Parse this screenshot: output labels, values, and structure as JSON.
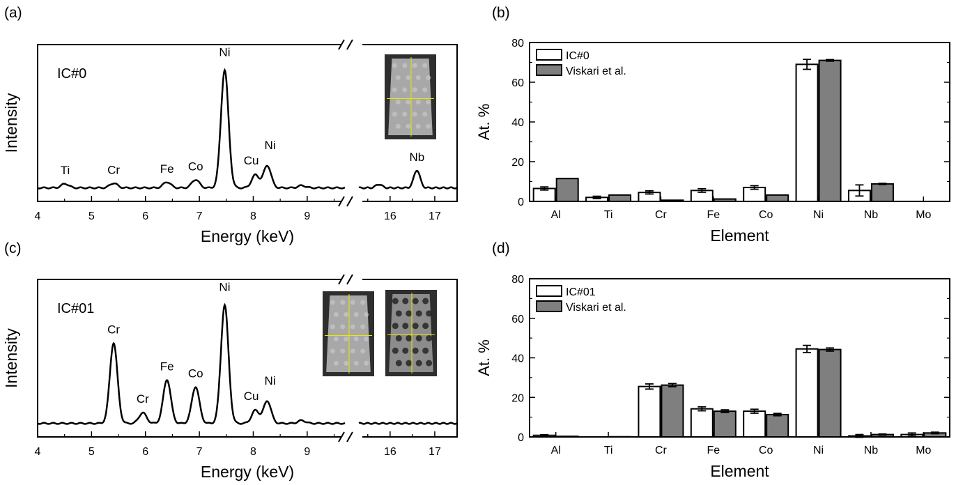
{
  "chart_data": [
    {
      "panel": "(a)",
      "type": "line",
      "label": "IC#0",
      "xlabel": "Energy (keV)",
      "ylabel": "Intensity",
      "axis_break": [
        9.7,
        15.3
      ],
      "x_ticks_left": [
        "4",
        "5",
        "6",
        "7",
        "8",
        "9"
      ],
      "x_ticks_right": [
        "16",
        "17"
      ],
      "xlim_left": [
        4,
        9.7
      ],
      "xlim_right": [
        15.3,
        17.5
      ],
      "ylim": [
        0,
        1.25
      ],
      "peaks": [
        {
          "label": "Ti",
          "x": 4.51,
          "h": 0.035
        },
        {
          "label": "Cr",
          "x": 5.41,
          "h": 0.04
        },
        {
          "label": "Fe",
          "x": 6.4,
          "h": 0.05
        },
        {
          "label": "Co",
          "x": 6.93,
          "h": 0.07
        },
        {
          "label": "Ni",
          "x": 7.47,
          "h": 1.0
        },
        {
          "label": "Cu",
          "x": 8.04,
          "h": 0.11
        },
        {
          "label": "Ni",
          "x": 8.26,
          "h": 0.19
        },
        {
          "label": "",
          "x": 8.9,
          "h": 0.02
        },
        {
          "label": "",
          "x": 15.75,
          "h": 0.03
        },
        {
          "label": "Nb",
          "x": 16.6,
          "h": 0.15
        }
      ],
      "baseline": 0.02
    },
    {
      "panel": "(b)",
      "type": "bar",
      "xlabel": "Element",
      "ylabel": "At. %",
      "ylim": [
        0,
        80
      ],
      "y_ticks": [
        "0",
        "20",
        "40",
        "60",
        "80"
      ],
      "categories": [
        "Al",
        "Ti",
        "Cr",
        "Fe",
        "Co",
        "Ni",
        "Nb",
        "Mo"
      ],
      "series": [
        {
          "name": "IC#0",
          "values": [
            6.5,
            2.0,
            4.5,
            5.5,
            7.0,
            69.0,
            5.5,
            0
          ],
          "errors": [
            0.8,
            0.6,
            0.8,
            0.9,
            0.9,
            2.5,
            2.8,
            0
          ]
        },
        {
          "name": "Viskari et al.",
          "values": [
            11.5,
            3.2,
            0.6,
            1.2,
            3.2,
            71.0,
            8.8,
            0
          ],
          "errors": [
            0,
            0,
            0,
            0,
            0,
            0.4,
            0.3,
            0
          ]
        }
      ],
      "legend": "top-left"
    },
    {
      "panel": "(c)",
      "type": "line",
      "label": "IC#01",
      "xlabel": "Energy (keV)",
      "ylabel": "Intensity",
      "axis_break": [
        9.7,
        15.3
      ],
      "x_ticks_left": [
        "4",
        "5",
        "6",
        "7",
        "8",
        "9"
      ],
      "x_ticks_right": [
        "16",
        "17"
      ],
      "xlim_left": [
        4,
        9.7
      ],
      "xlim_right": [
        15.3,
        17.5
      ],
      "ylim": [
        0,
        1.25
      ],
      "peaks": [
        {
          "label": "Cr",
          "x": 5.41,
          "h": 0.68
        },
        {
          "label": "Cr",
          "x": 5.95,
          "h": 0.09
        },
        {
          "label": "Fe",
          "x": 6.4,
          "h": 0.37
        },
        {
          "label": "Co",
          "x": 6.93,
          "h": 0.31
        },
        {
          "label": "Ni",
          "x": 7.47,
          "h": 1.0
        },
        {
          "label": "Cu",
          "x": 8.04,
          "h": 0.11
        },
        {
          "label": "Ni",
          "x": 8.26,
          "h": 0.19
        },
        {
          "label": "",
          "x": 8.9,
          "h": 0.025
        }
      ],
      "baseline": 0.02
    },
    {
      "panel": "(d)",
      "type": "bar",
      "xlabel": "Element",
      "ylabel": "At. %",
      "ylim": [
        0,
        80
      ],
      "y_ticks": [
        "0",
        "20",
        "40",
        "60",
        "80"
      ],
      "categories": [
        "Al",
        "Ti",
        "Cr",
        "Fe",
        "Co",
        "Ni",
        "Nb",
        "Mo"
      ],
      "series": [
        {
          "name": "IC#01",
          "values": [
            0.8,
            0,
            25.5,
            14.2,
            13.0,
            44.5,
            0.5,
            1.2
          ],
          "errors": [
            0.3,
            0,
            1.3,
            1.0,
            1.0,
            1.8,
            0.7,
            0.8
          ]
        },
        {
          "name": "Viskari et al.",
          "values": [
            0.3,
            0.1,
            26.2,
            13.0,
            11.3,
            44.2,
            1.2,
            2.0
          ],
          "errors": [
            0,
            0,
            0.8,
            0.7,
            0.6,
            0.8,
            0.3,
            0.4
          ]
        }
      ],
      "legend": "top-left"
    }
  ],
  "colors": {
    "axis": "#000000",
    "bar_a": "#ffffff",
    "bar_b": "#7f7f7f",
    "inset_bg": "#3a3a3a",
    "crosshair": "#e8e800"
  }
}
